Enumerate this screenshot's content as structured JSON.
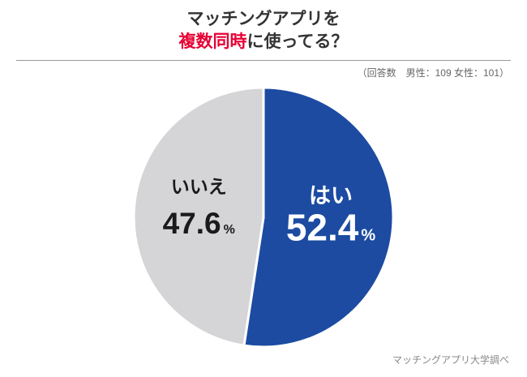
{
  "header": {
    "title_line1": "マッチングアプリを",
    "title_line2_highlight": "複数同時",
    "title_line2_rest": "に使ってる？",
    "respondents_note": "（回答数　男性：109 女性：101）"
  },
  "footer": {
    "source": "マッチングアプリ大学調べ"
  },
  "colors": {
    "highlight_red": "#e60033",
    "yes_blue": "#1c4ba1",
    "no_gray": "#d5d5d7",
    "divider_gray": "#999999"
  },
  "chart_data": {
    "type": "pie",
    "title": "マッチングアプリを複数同時に使ってる？",
    "labels": [
      "はい",
      "いいえ"
    ],
    "values": [
      52.4,
      47.6
    ],
    "unit": "%",
    "colors": [
      "#1c4ba1",
      "#d5d5d7"
    ],
    "label_text_colors": [
      "#ffffff",
      "#1a1a1a"
    ],
    "start_angle_deg": 0,
    "direction": "clockwise",
    "legend": "none",
    "gridlines": false
  }
}
